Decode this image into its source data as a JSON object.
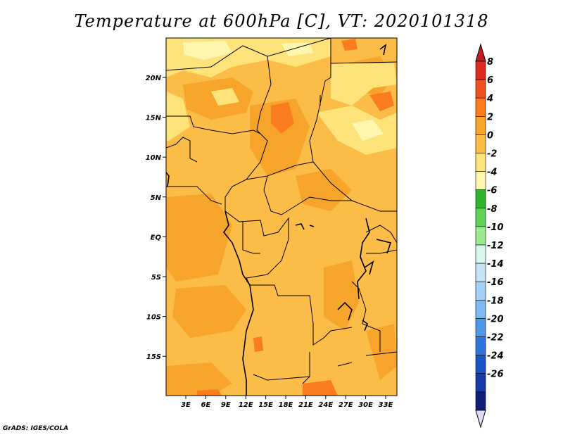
{
  "title": "Temperature at 600hPa [C], VT: 2020101318",
  "credit": "GrADS: IGES/COLA",
  "map": {
    "lat_ticks": [
      "20N",
      "15N",
      "10N",
      "5N",
      "EQ",
      "5S",
      "10S",
      "15S"
    ],
    "lon_ticks": [
      "3E",
      "6E",
      "9E",
      "12E",
      "15E",
      "18E",
      "21E",
      "24E",
      "27E",
      "30E",
      "33E"
    ],
    "base_color": "#fbbd47"
  },
  "colorbar": {
    "labels": [
      "8",
      "6",
      "4",
      "2",
      "0",
      "-2",
      "-4",
      "-6",
      "-8",
      "-10",
      "-12",
      "-14",
      "-16",
      "-18",
      "-20",
      "-22",
      "-24",
      "-26"
    ],
    "colors": [
      "#dc2b1f",
      "#f0501e",
      "#fa7c1e",
      "#f7a42a",
      "#fbbd47",
      "#fde37a",
      "#fff7ae",
      "#2db52b",
      "#5fd257",
      "#99eb8e",
      "#d8f7ec",
      "#c5e3f7",
      "#a3d1f5",
      "#7cb8f2",
      "#4f98ea",
      "#2f77dd",
      "#1c55c6",
      "#163aa8",
      "#0f1f78"
    ],
    "top_cap_color": "#c01e1e",
    "bottom_cap_color": "#dcdcf8"
  }
}
